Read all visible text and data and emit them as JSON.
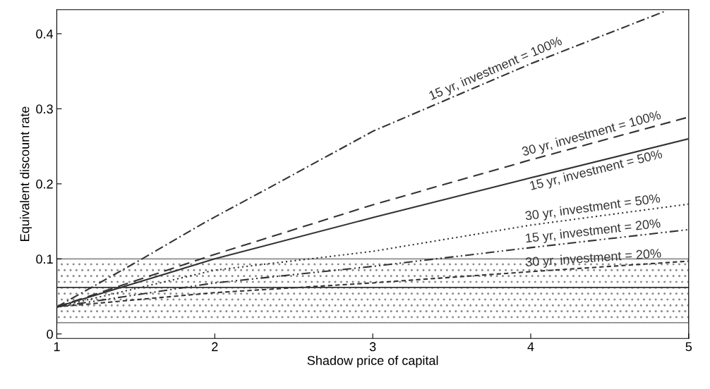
{
  "chart_data": {
    "type": "line",
    "xlabel": "Shadow price of capital",
    "ylabel": "Equivalent discount rate",
    "series": [
      {
        "name": "15 yr, investment = 100%",
        "color": "#333333",
        "line_style": "dashdot",
        "x": [
          1,
          1.54,
          1.94,
          2.39,
          3,
          4,
          4.85
        ],
        "values": [
          0.036,
          0.1,
          0.149,
          0.2,
          0.27,
          0.36,
          0.43
        ]
      },
      {
        "name": "30 yr, investment = 100%",
        "color": "#333333",
        "line_style": "dashed",
        "x": [
          1,
          2,
          3,
          4,
          5
        ],
        "values": [
          0.036,
          0.106,
          0.172,
          0.232,
          0.289
        ]
      },
      {
        "name": "15 yr, investment = 50%",
        "color": "#333333",
        "line_style": "solid",
        "x": [
          1,
          2,
          3,
          4,
          5
        ],
        "values": [
          0.036,
          0.1,
          0.155,
          0.208,
          0.26
        ]
      },
      {
        "name": "30 yr, investment = 50%",
        "color": "#333333",
        "line_style": "dotted",
        "x": [
          1,
          2,
          3,
          4,
          5
        ],
        "values": [
          0.036,
          0.085,
          0.11,
          0.145,
          0.173
        ]
      },
      {
        "name": "15 yr, investment = 20%",
        "color": "#333333",
        "line_style": "dashdotdot",
        "x": [
          1,
          2,
          3,
          4,
          5
        ],
        "values": [
          0.036,
          0.068,
          0.09,
          0.115,
          0.139
        ]
      },
      {
        "name": "30 yr, investment = 20%",
        "color": "#333333",
        "line_style": "shortdash",
        "x": [
          1,
          2,
          3,
          4,
          5
        ],
        "values": [
          0.036,
          0.055,
          0.068,
          0.083,
          0.097
        ]
      }
    ],
    "bands": [
      {
        "axis": "y",
        "from": 0.015,
        "to": 0.1,
        "color": "#8c8c8c"
      }
    ],
    "ref_lines": [
      {
        "axis": "y",
        "value": 0.062,
        "color": "#333333"
      }
    ],
    "xlim": [
      1,
      5
    ],
    "xticks": [
      1,
      2,
      3,
      4,
      5
    ],
    "ylim": [
      -0.006,
      0.432
    ],
    "yticks": [
      0,
      0.1,
      0.2,
      0.3,
      0.4
    ],
    "grid": false,
    "legend": false
  }
}
